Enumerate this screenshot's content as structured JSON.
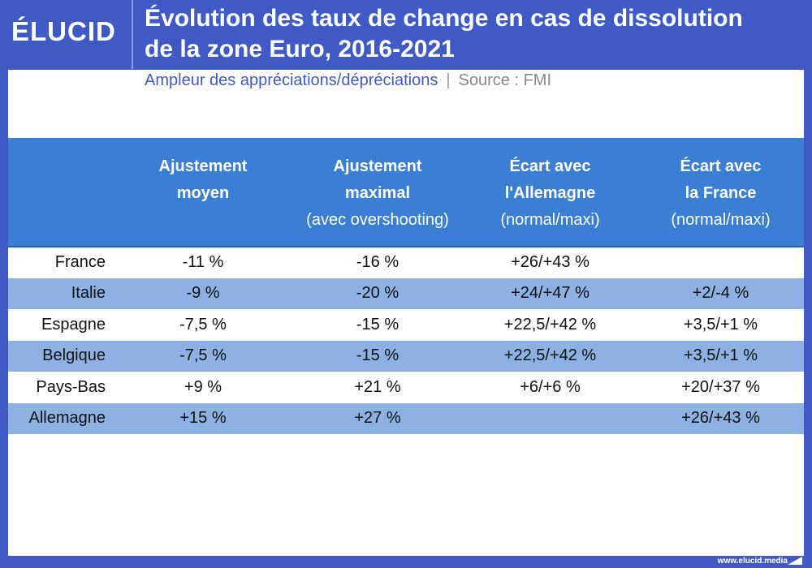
{
  "brand": "ÉLUCID",
  "title_line1": "Évolution des taux de change en cas de dissolution",
  "title_line2": "de la zone Euro, 2016-2021",
  "subtitle": "Ampleur des appréciations/dépréciations",
  "separator": "|",
  "source": "Source : FMI",
  "columns": [
    {
      "l1": "Ajustement",
      "l2": "moyen",
      "l3": ""
    },
    {
      "l1": "Ajustement",
      "l2": "maximal",
      "l3": "(avec overshooting)"
    },
    {
      "l1": "Écart avec",
      "l2": "l'Allemagne",
      "l3": "(normal/maxi)"
    },
    {
      "l1": "Écart avec",
      "l2": "la France",
      "l3": "(normal/maxi)"
    }
  ],
  "rows": [
    {
      "country": "France",
      "c": [
        "-11 %",
        "-16 %",
        "+26/+43 %",
        ""
      ]
    },
    {
      "country": "Italie",
      "c": [
        "-9 %",
        "-20 %",
        "+24/+47 %",
        "+2/-4 %"
      ]
    },
    {
      "country": "Espagne",
      "c": [
        "-7,5 %",
        "-15 %",
        "+22,5/+42 %",
        "+3,5/+1 %"
      ]
    },
    {
      "country": "Belgique",
      "c": [
        "-7,5 %",
        "-15 %",
        "+22,5/+42 %",
        "+3,5/+1 %"
      ]
    },
    {
      "country": "Pays-Bas",
      "c": [
        "+9 %",
        "+21 %",
        "+6/+6 %",
        "+20/+37 %"
      ]
    },
    {
      "country": "Allemagne",
      "c": [
        "+15 %",
        "+27 %",
        "",
        "+26/+43 %"
      ]
    }
  ],
  "footer": "www.elucid.media"
}
